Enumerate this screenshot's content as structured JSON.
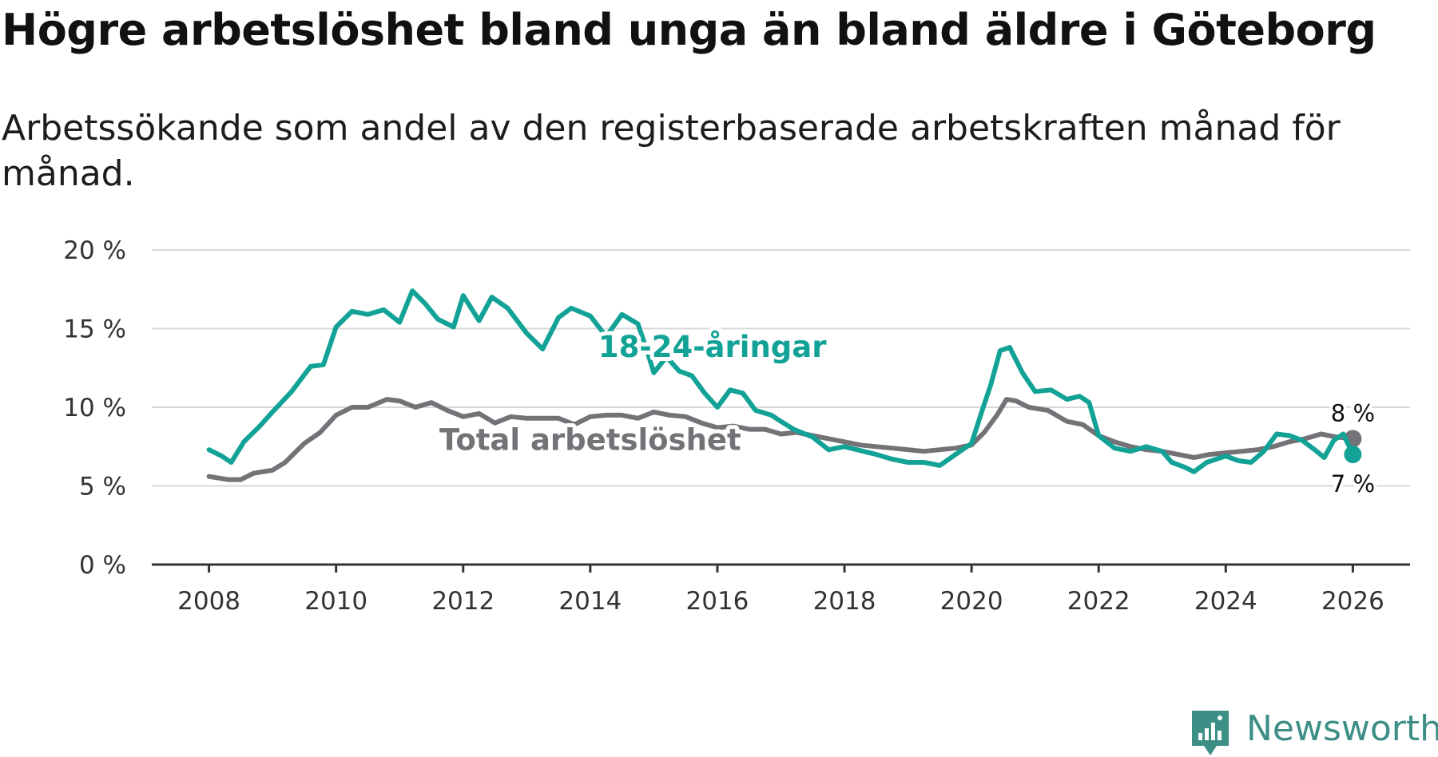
{
  "title": "Högre arbetslöshet bland unga än bland äldre i Göteborg",
  "subtitle": "Arbetssökande som andel av den registerbaserade arbetskraften månad för månad.",
  "brand": {
    "name": "Newsworthy",
    "color": "#3d8f86"
  },
  "chart_data": {
    "type": "line",
    "title": "Högre arbetslöshet bland unga än bland äldre i Göteborg",
    "xlabel": "",
    "ylabel": "",
    "xlim": [
      2007.1,
      2026.9
    ],
    "ylim": [
      0,
      20
    ],
    "grid": true,
    "x_ticks": [
      {
        "value": 2008,
        "label": "2008"
      },
      {
        "value": 2010,
        "label": "2010"
      },
      {
        "value": 2012,
        "label": "2012"
      },
      {
        "value": 2014,
        "label": "2014"
      },
      {
        "value": 2016,
        "label": "2016"
      },
      {
        "value": 2018,
        "label": "2018"
      },
      {
        "value": 2020,
        "label": "2020"
      },
      {
        "value": 2022,
        "label": "2022"
      },
      {
        "value": 2024,
        "label": "2024"
      },
      {
        "value": 2026,
        "label": "2026"
      }
    ],
    "y_ticks": [
      {
        "value": 0,
        "label": "0 %"
      },
      {
        "value": 5,
        "label": "5 %"
      },
      {
        "value": 10,
        "label": "10 %"
      },
      {
        "value": 15,
        "label": "15 %"
      },
      {
        "value": 20,
        "label": "20 %"
      }
    ],
    "series": [
      {
        "name": "Total arbetslöshet",
        "color": "#747277",
        "label": "Total arbetslöshet",
        "label_at": [
          2011.5,
          7.9
        ],
        "end_label": "8 %",
        "points": [
          [
            2008.0,
            5.6
          ],
          [
            2008.3,
            5.4
          ],
          [
            2008.5,
            5.4
          ],
          [
            2008.7,
            5.8
          ],
          [
            2009.0,
            6.0
          ],
          [
            2009.2,
            6.5
          ],
          [
            2009.5,
            7.7
          ],
          [
            2009.75,
            8.4
          ],
          [
            2010.0,
            9.5
          ],
          [
            2010.25,
            10.0
          ],
          [
            2010.5,
            10.0
          ],
          [
            2010.8,
            10.5
          ],
          [
            2011.0,
            10.4
          ],
          [
            2011.25,
            10.0
          ],
          [
            2011.5,
            10.3
          ],
          [
            2011.75,
            9.8
          ],
          [
            2012.0,
            9.4
          ],
          [
            2012.25,
            9.6
          ],
          [
            2012.5,
            9.0
          ],
          [
            2012.75,
            9.4
          ],
          [
            2013.0,
            9.3
          ],
          [
            2013.25,
            9.3
          ],
          [
            2013.5,
            9.3
          ],
          [
            2013.75,
            8.9
          ],
          [
            2014.0,
            9.4
          ],
          [
            2014.25,
            9.5
          ],
          [
            2014.5,
            9.5
          ],
          [
            2014.75,
            9.3
          ],
          [
            2015.0,
            9.7
          ],
          [
            2015.25,
            9.5
          ],
          [
            2015.5,
            9.4
          ],
          [
            2015.75,
            9.0
          ],
          [
            2016.0,
            8.7
          ],
          [
            2016.25,
            8.8
          ],
          [
            2016.5,
            8.6
          ],
          [
            2016.75,
            8.6
          ],
          [
            2017.0,
            8.3
          ],
          [
            2017.25,
            8.4
          ],
          [
            2017.5,
            8.2
          ],
          [
            2017.75,
            8.0
          ],
          [
            2018.0,
            7.8
          ],
          [
            2018.25,
            7.6
          ],
          [
            2018.5,
            7.5
          ],
          [
            2018.75,
            7.4
          ],
          [
            2019.0,
            7.3
          ],
          [
            2019.25,
            7.2
          ],
          [
            2019.5,
            7.3
          ],
          [
            2019.75,
            7.4
          ],
          [
            2020.0,
            7.6
          ],
          [
            2020.2,
            8.4
          ],
          [
            2020.4,
            9.5
          ],
          [
            2020.55,
            10.5
          ],
          [
            2020.7,
            10.4
          ],
          [
            2020.9,
            10.0
          ],
          [
            2021.2,
            9.8
          ],
          [
            2021.5,
            9.1
          ],
          [
            2021.75,
            8.9
          ],
          [
            2022.0,
            8.2
          ],
          [
            2022.25,
            7.8
          ],
          [
            2022.5,
            7.5
          ],
          [
            2022.75,
            7.3
          ],
          [
            2023.0,
            7.2
          ],
          [
            2023.25,
            7.0
          ],
          [
            2023.5,
            6.8
          ],
          [
            2023.75,
            7.0
          ],
          [
            2024.0,
            7.1
          ],
          [
            2024.25,
            7.2
          ],
          [
            2024.5,
            7.3
          ],
          [
            2024.75,
            7.5
          ],
          [
            2025.0,
            7.8
          ],
          [
            2025.25,
            8.0
          ],
          [
            2025.5,
            8.3
          ],
          [
            2025.75,
            8.1
          ],
          [
            2026.0,
            8.0
          ]
        ]
      },
      {
        "name": "18-24-åringar",
        "color": "#12a296",
        "label": "18-24-åringar",
        "label_at": [
          2014.0,
          13.8
        ],
        "end_label": "7 %",
        "points": [
          [
            2008.0,
            7.3
          ],
          [
            2008.2,
            6.9
          ],
          [
            2008.35,
            6.5
          ],
          [
            2008.55,
            7.8
          ],
          [
            2008.8,
            8.8
          ],
          [
            2009.0,
            9.7
          ],
          [
            2009.3,
            11.0
          ],
          [
            2009.6,
            12.6
          ],
          [
            2009.8,
            12.7
          ],
          [
            2010.0,
            15.1
          ],
          [
            2010.25,
            16.1
          ],
          [
            2010.5,
            15.9
          ],
          [
            2010.75,
            16.2
          ],
          [
            2011.0,
            15.4
          ],
          [
            2011.2,
            17.4
          ],
          [
            2011.4,
            16.6
          ],
          [
            2011.6,
            15.6
          ],
          [
            2011.85,
            15.1
          ],
          [
            2012.0,
            17.1
          ],
          [
            2012.25,
            15.5
          ],
          [
            2012.45,
            17.0
          ],
          [
            2012.7,
            16.3
          ],
          [
            2013.0,
            14.7
          ],
          [
            2013.25,
            13.7
          ],
          [
            2013.5,
            15.7
          ],
          [
            2013.7,
            16.3
          ],
          [
            2014.0,
            15.8
          ],
          [
            2014.25,
            14.5
          ],
          [
            2014.5,
            15.9
          ],
          [
            2014.75,
            15.3
          ],
          [
            2014.9,
            13.5
          ],
          [
            2015.0,
            12.2
          ],
          [
            2015.2,
            13.2
          ],
          [
            2015.4,
            12.3
          ],
          [
            2015.6,
            12.0
          ],
          [
            2015.8,
            10.9
          ],
          [
            2016.0,
            10.0
          ],
          [
            2016.2,
            11.1
          ],
          [
            2016.4,
            10.9
          ],
          [
            2016.6,
            9.8
          ],
          [
            2016.85,
            9.5
          ],
          [
            2017.0,
            9.1
          ],
          [
            2017.2,
            8.6
          ],
          [
            2017.5,
            8.1
          ],
          [
            2017.75,
            7.3
          ],
          [
            2018.0,
            7.5
          ],
          [
            2018.5,
            7.0
          ],
          [
            2018.75,
            6.7
          ],
          [
            2019.0,
            6.5
          ],
          [
            2019.25,
            6.5
          ],
          [
            2019.5,
            6.3
          ],
          [
            2019.75,
            7.0
          ],
          [
            2020.0,
            7.7
          ],
          [
            2020.15,
            9.6
          ],
          [
            2020.3,
            11.4
          ],
          [
            2020.45,
            13.6
          ],
          [
            2020.6,
            13.8
          ],
          [
            2020.8,
            12.2
          ],
          [
            2021.0,
            11.0
          ],
          [
            2021.25,
            11.1
          ],
          [
            2021.5,
            10.5
          ],
          [
            2021.7,
            10.7
          ],
          [
            2021.85,
            10.3
          ],
          [
            2022.0,
            8.2
          ],
          [
            2022.25,
            7.4
          ],
          [
            2022.5,
            7.2
          ],
          [
            2022.75,
            7.5
          ],
          [
            2023.0,
            7.2
          ],
          [
            2023.15,
            6.5
          ],
          [
            2023.35,
            6.2
          ],
          [
            2023.5,
            5.9
          ],
          [
            2023.7,
            6.5
          ],
          [
            2024.0,
            6.9
          ],
          [
            2024.2,
            6.6
          ],
          [
            2024.4,
            6.5
          ],
          [
            2024.6,
            7.2
          ],
          [
            2024.8,
            8.3
          ],
          [
            2025.0,
            8.2
          ],
          [
            2025.2,
            7.9
          ],
          [
            2025.4,
            7.3
          ],
          [
            2025.55,
            6.8
          ],
          [
            2025.7,
            7.9
          ],
          [
            2025.85,
            8.3
          ],
          [
            2026.0,
            7.0
          ]
        ]
      }
    ]
  }
}
